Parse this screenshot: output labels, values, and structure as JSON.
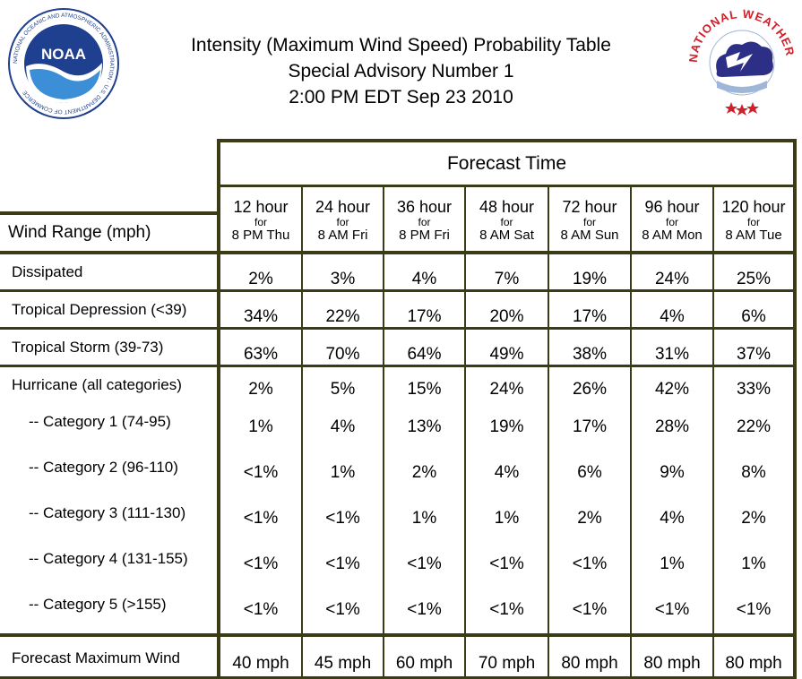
{
  "header": {
    "title_line1": "Intensity (Maximum Wind Speed) Probability Table",
    "title_line2": "Special Advisory Number 1",
    "title_line3": "2:00 PM EDT Sep 23 2010",
    "noaa_logo_text": "NOAA",
    "noaa_ring_text": "NATIONAL OCEANIC AND ATMOSPHERIC ADMINISTRATION · U.S. DEPARTMENT OF COMMERCE",
    "nws_ring_text": "NATIONAL WEATHER SERVICE"
  },
  "table": {
    "forecast_time_label": "Forecast Time",
    "wind_range_label": "Wind Range (mph)",
    "columns": [
      {
        "hours": "12 hour",
        "for": "for",
        "when": "8 PM Thu"
      },
      {
        "hours": "24 hour",
        "for": "for",
        "when": "8 AM Fri"
      },
      {
        "hours": "36 hour",
        "for": "for",
        "when": "8 PM Fri"
      },
      {
        "hours": "48 hour",
        "for": "for",
        "when": "8 AM Sat"
      },
      {
        "hours": "72 hour",
        "for": "for",
        "when": "8 AM Sun"
      },
      {
        "hours": "96 hour",
        "for": "for",
        "when": "8 AM Mon"
      },
      {
        "hours": "120 hour",
        "for": "for",
        "when": "8 AM Tue"
      }
    ],
    "rows": {
      "dissipated": {
        "label": "Dissipated",
        "values": [
          "2%",
          "3%",
          "4%",
          "7%",
          "19%",
          "24%",
          "25%"
        ]
      },
      "tropical_depression": {
        "label": "Tropical Depression (<39)",
        "values": [
          "34%",
          "22%",
          "17%",
          "20%",
          "17%",
          "4%",
          "6%"
        ]
      },
      "tropical_storm": {
        "label": "Tropical Storm (39-73)",
        "values": [
          "63%",
          "70%",
          "64%",
          "49%",
          "38%",
          "31%",
          "37%"
        ]
      },
      "hurricane": {
        "label": "Hurricane (all categories)",
        "values": [
          "2%",
          "5%",
          "15%",
          "24%",
          "26%",
          "42%",
          "33%"
        ]
      },
      "cat1": {
        "label": "-- Category 1 (74-95)",
        "values": [
          "1%",
          "4%",
          "13%",
          "19%",
          "17%",
          "28%",
          "22%"
        ]
      },
      "cat2": {
        "label": "-- Category 2 (96-110)",
        "values": [
          "<1%",
          "1%",
          "2%",
          "4%",
          "6%",
          "9%",
          "8%"
        ]
      },
      "cat3": {
        "label": "-- Category 3 (111-130)",
        "values": [
          "<1%",
          "<1%",
          "1%",
          "1%",
          "2%",
          "4%",
          "2%"
        ]
      },
      "cat4": {
        "label": "-- Category 4 (131-155)",
        "values": [
          "<1%",
          "<1%",
          "<1%",
          "<1%",
          "<1%",
          "1%",
          "1%"
        ]
      },
      "cat5": {
        "label": "-- Category 5 (>155)",
        "values": [
          "<1%",
          "<1%",
          "<1%",
          "<1%",
          "<1%",
          "<1%",
          "<1%"
        ]
      },
      "max_wind": {
        "label": "Forecast Maximum Wind",
        "values": [
          "40 mph",
          "45 mph",
          "60 mph",
          "70 mph",
          "80 mph",
          "80 mph",
          "80 mph"
        ]
      }
    }
  },
  "colors": {
    "border": "#3b3b16",
    "noaa_blue": "#1f3f8f",
    "nws_red": "#d0202a"
  }
}
